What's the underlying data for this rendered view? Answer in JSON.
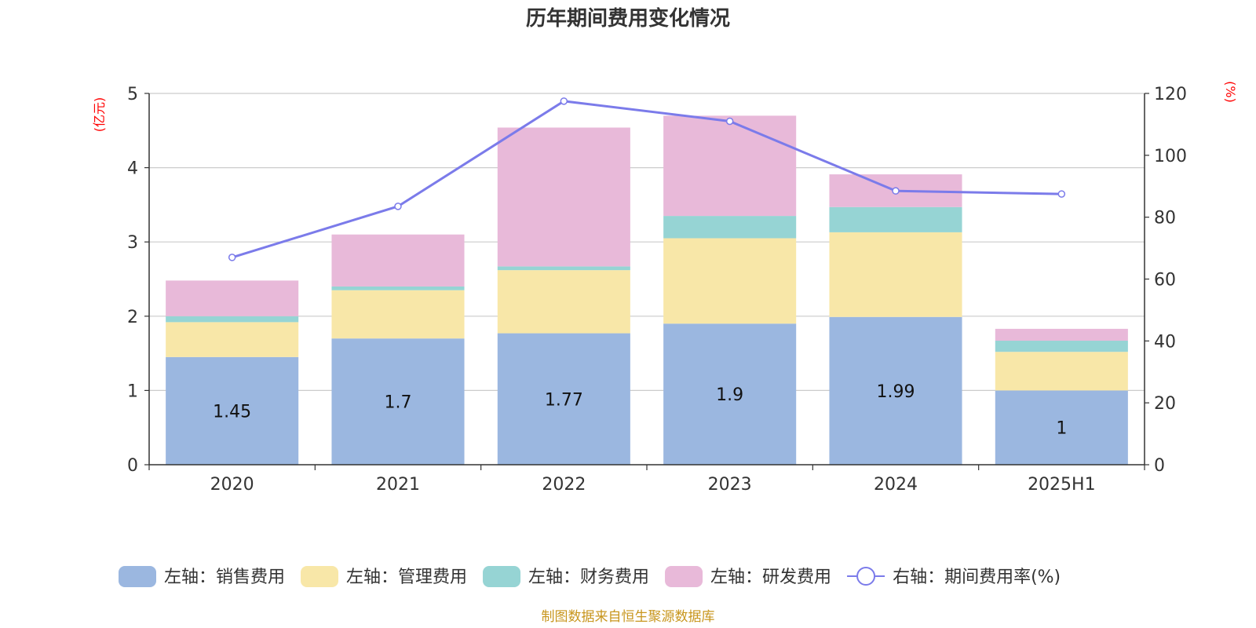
{
  "chart_data": {
    "type": "bar",
    "stacked": true,
    "title": "历年期间费用变化情况",
    "categories": [
      "2020",
      "2021",
      "2022",
      "2023",
      "2024",
      "2025H1"
    ],
    "left_axis": {
      "unit_label": "(亿元)",
      "ylim": [
        0,
        5
      ],
      "ticks": [
        "0",
        "1",
        "2",
        "3",
        "4",
        "5"
      ]
    },
    "right_axis": {
      "unit_label": "(%)",
      "ylim": [
        0,
        120
      ],
      "ticks": [
        "0",
        "20",
        "40",
        "60",
        "80",
        "100",
        "120"
      ]
    },
    "series": [
      {
        "name": "左轴：销售费用",
        "type": "bar",
        "axis": "left",
        "color": "#9bb7e0",
        "values": [
          1.45,
          1.7,
          1.77,
          1.9,
          1.99,
          1.0
        ],
        "labels": [
          "1.45",
          "1.7",
          "1.77",
          "1.9",
          "1.99",
          "1"
        ]
      },
      {
        "name": "左轴：管理费用",
        "type": "bar",
        "axis": "left",
        "color": "#f8e7a8",
        "values": [
          0.47,
          0.65,
          0.85,
          1.15,
          1.14,
          0.52
        ]
      },
      {
        "name": "左轴：财务费用",
        "type": "bar",
        "axis": "left",
        "color": "#96d4d4",
        "values": [
          0.08,
          0.05,
          0.05,
          0.3,
          0.34,
          0.15
        ]
      },
      {
        "name": "左轴：研发费用",
        "type": "bar",
        "axis": "left",
        "color": "#e8b9d9",
        "values": [
          0.48,
          0.7,
          1.87,
          1.35,
          0.44,
          0.16
        ]
      },
      {
        "name": "右轴：期间费用率(%)",
        "type": "line",
        "axis": "right",
        "color": "#7b7bea",
        "values": [
          67,
          83.5,
          117.5,
          111,
          88.5,
          87.5
        ]
      }
    ],
    "grid": true,
    "legend": "bottom"
  },
  "source_text": "制图数据来自恒生聚源数据库"
}
